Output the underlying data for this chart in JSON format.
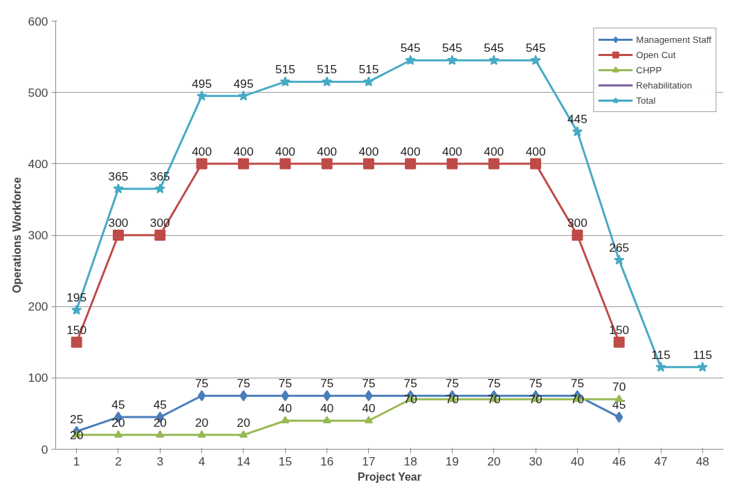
{
  "chart_data": {
    "type": "line",
    "xlabel": "Project Year",
    "ylabel": "Operations Workforce",
    "categories": [
      "1",
      "2",
      "3",
      "4",
      "14",
      "15",
      "16",
      "17",
      "18",
      "19",
      "20",
      "30",
      "40",
      "46",
      "47",
      "48"
    ],
    "series": [
      {
        "name": "Management Staff",
        "color": "#4a7ebb",
        "marker": "diamond",
        "values": [
          25,
          45,
          45,
          75,
          75,
          75,
          75,
          75,
          75,
          75,
          75,
          75,
          75,
          45,
          null,
          null
        ]
      },
      {
        "name": "Open Cut",
        "color": "#be4b48",
        "marker": "square",
        "values": [
          150,
          300,
          300,
          400,
          400,
          400,
          400,
          400,
          400,
          400,
          400,
          400,
          300,
          150,
          null,
          null
        ]
      },
      {
        "name": "CHPP",
        "color": "#98b954",
        "marker": "triangle",
        "values": [
          20,
          20,
          20,
          20,
          20,
          40,
          40,
          40,
          70,
          70,
          70,
          70,
          70,
          70,
          null,
          null
        ]
      },
      {
        "name": "Rehabilitation",
        "color": "#7d60a0",
        "marker": "none",
        "values": [
          null,
          null,
          null,
          null,
          null,
          null,
          null,
          null,
          null,
          null,
          null,
          null,
          null,
          null,
          null,
          null
        ]
      },
      {
        "name": "Total",
        "color": "#46aac5",
        "marker": "star",
        "values": [
          195,
          365,
          365,
          495,
          495,
          515,
          515,
          515,
          545,
          545,
          545,
          545,
          445,
          265,
          115,
          115
        ]
      }
    ],
    "ylim": [
      0,
      600
    ],
    "yticks": [
      0,
      100,
      200,
      300,
      400,
      500,
      600
    ],
    "grid": "y",
    "legend": "top right",
    "data_labels": true
  }
}
